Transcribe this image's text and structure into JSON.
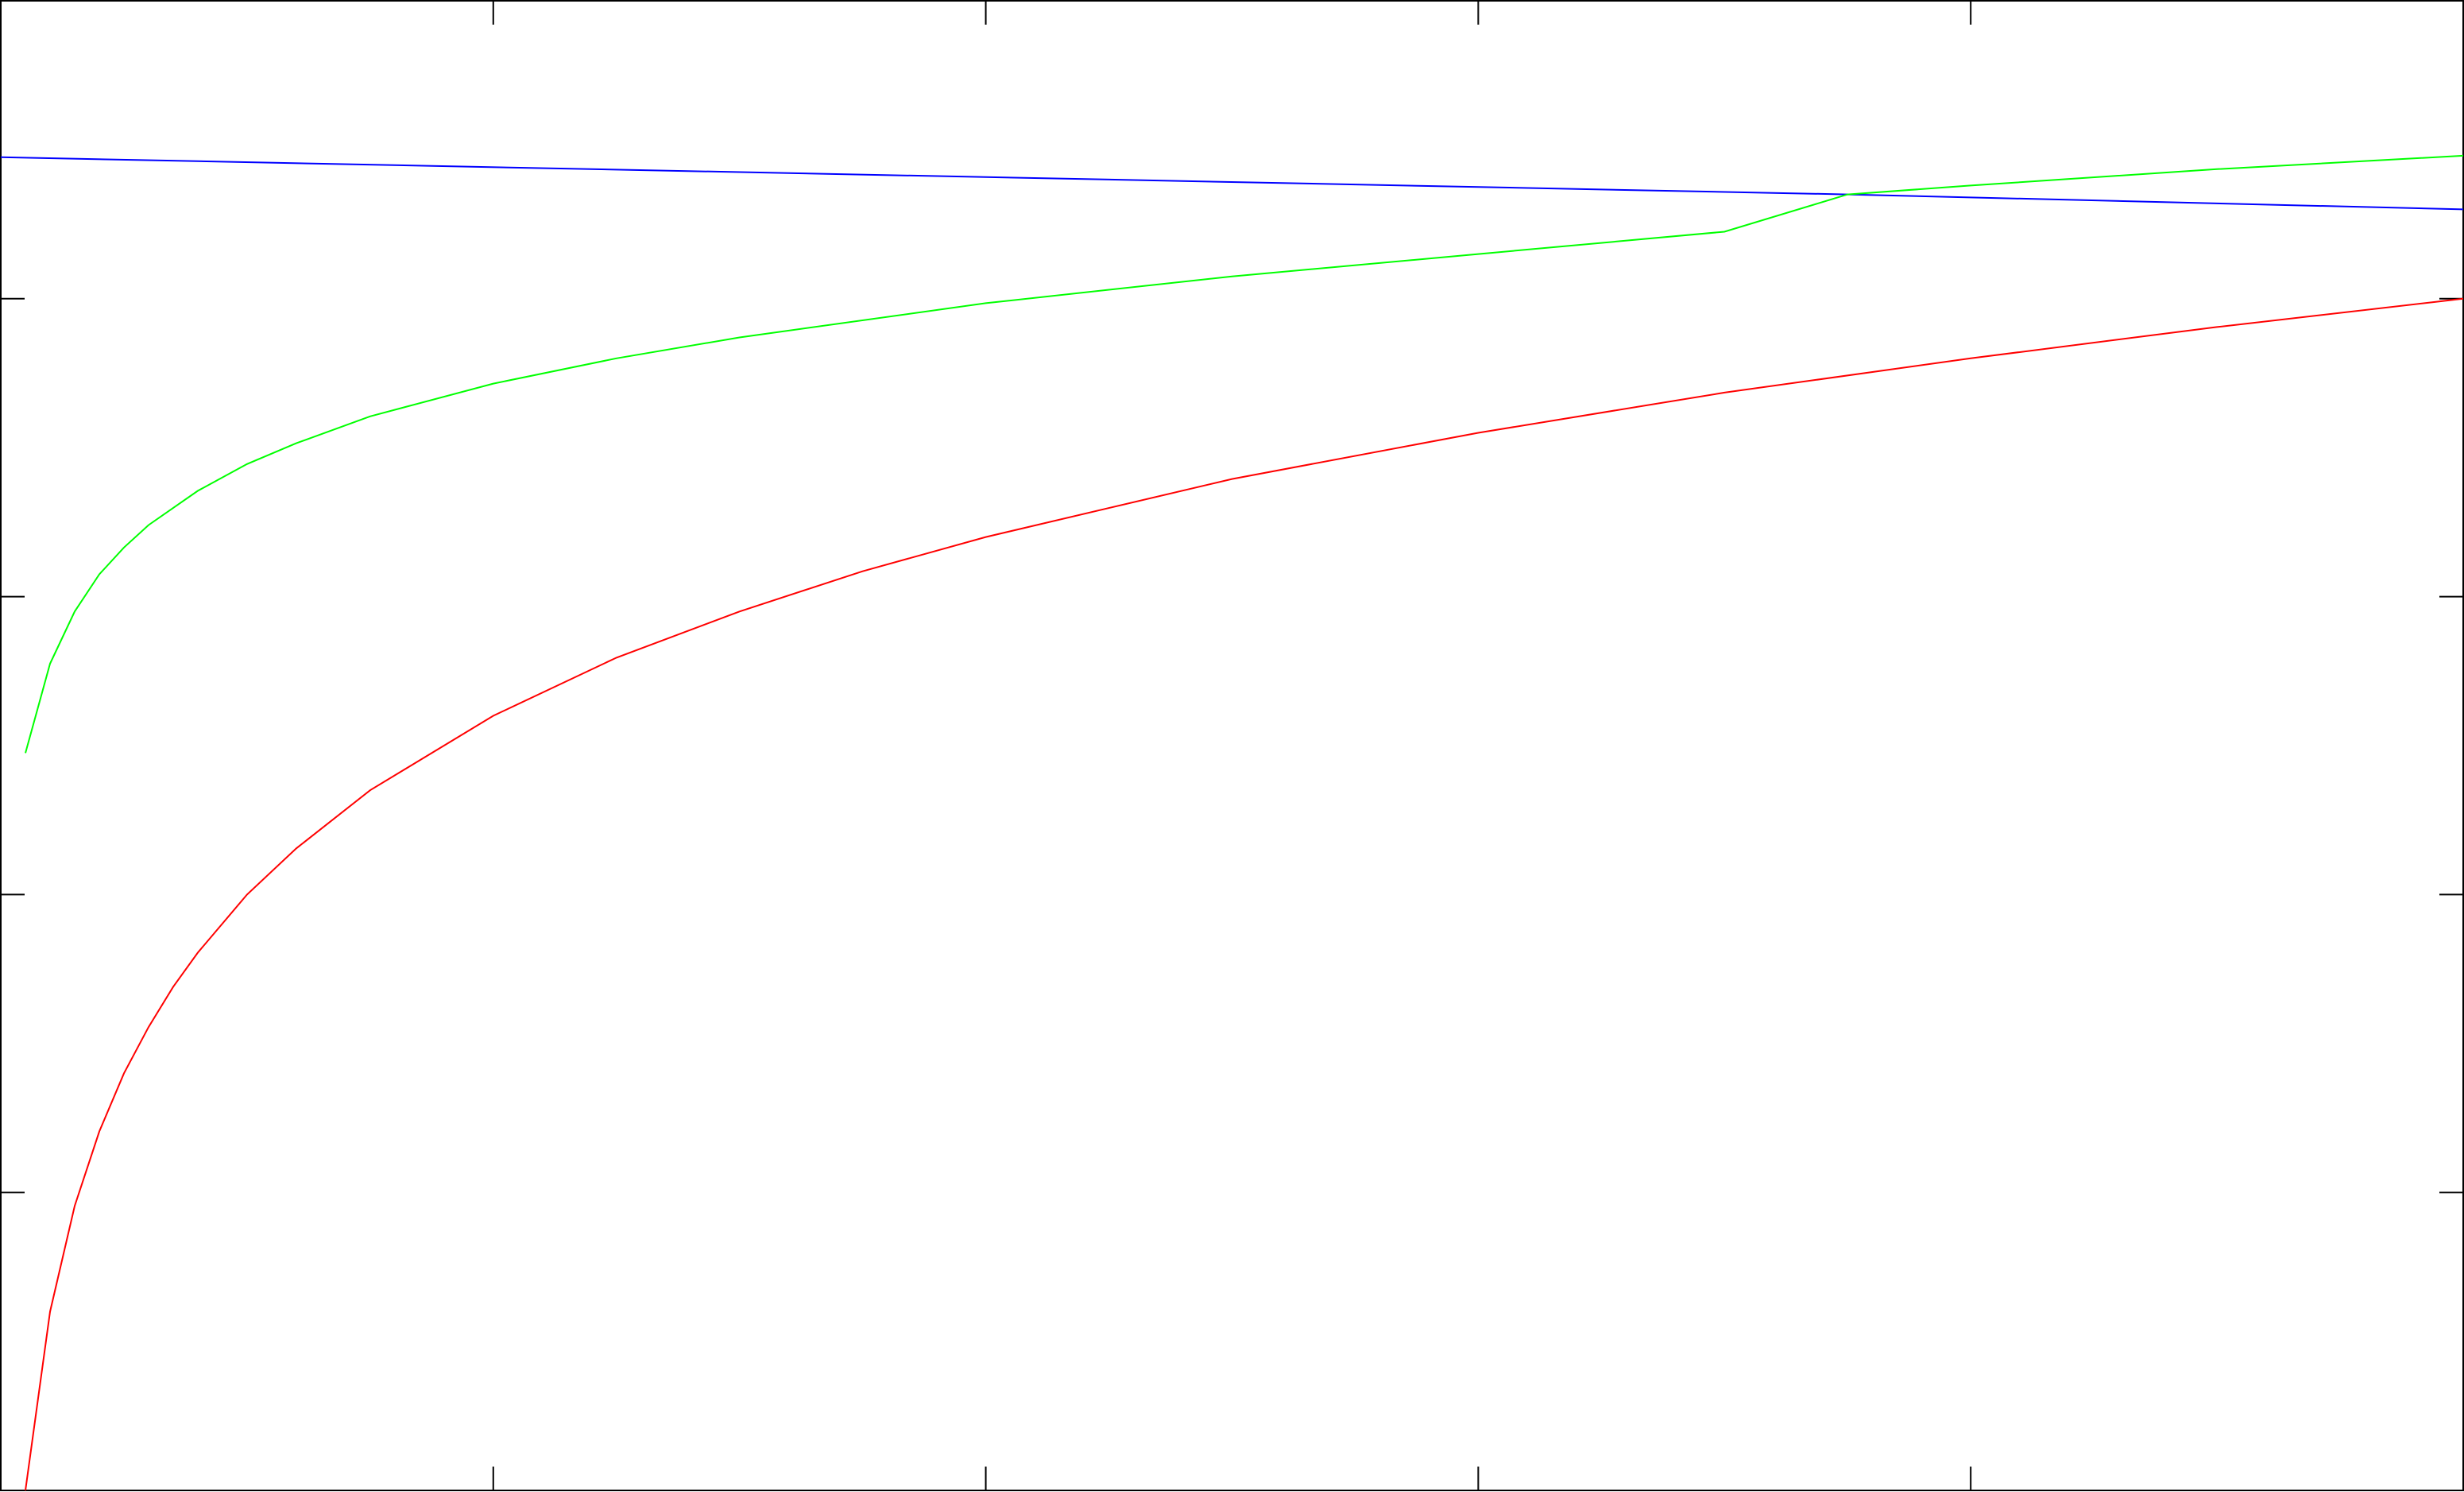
{
  "chart_data": {
    "type": "line",
    "title": "",
    "xlabel": "",
    "ylabel": "",
    "grid": false,
    "legend": "none",
    "xlim": [
      0,
      1
    ],
    "ylim": [
      0,
      1
    ],
    "x_ticks": [
      0,
      0.2,
      0.4,
      0.6,
      0.8,
      1
    ],
    "y_ticks": [
      0,
      0.2,
      0.4,
      0.6,
      0.8,
      1
    ],
    "tick_labels_visible": false,
    "series": [
      {
        "color": "#0000ff",
        "x": [
          0,
          0.75,
          1
        ],
        "y": [
          0.895,
          0.87,
          0.86
        ]
      },
      {
        "color": "#00ff00",
        "x": [
          0.01,
          0.02,
          0.03,
          0.04,
          0.05,
          0.06,
          0.08,
          0.1,
          0.12,
          0.15,
          0.2,
          0.25,
          0.3,
          0.4,
          0.5,
          0.6,
          0.7,
          0.75,
          0.8,
          0.9,
          1.0
        ],
        "y": [
          0.495,
          0.555,
          0.59,
          0.615,
          0.633,
          0.648,
          0.671,
          0.689,
          0.703,
          0.721,
          0.743,
          0.76,
          0.774,
          0.797,
          0.815,
          0.83,
          0.845,
          0.87,
          0.876,
          0.887,
          0.896
        ]
      },
      {
        "color": "#ff0000",
        "x": [
          0.01,
          0.02,
          0.03,
          0.04,
          0.05,
          0.06,
          0.07,
          0.08,
          0.1,
          0.12,
          0.15,
          0.2,
          0.25,
          0.3,
          0.35,
          0.4,
          0.5,
          0.6,
          0.7,
          0.8,
          0.9,
          1.0
        ],
        "y": [
          0.0,
          0.12,
          0.191,
          0.241,
          0.28,
          0.311,
          0.338,
          0.361,
          0.4,
          0.431,
          0.47,
          0.52,
          0.559,
          0.59,
          0.617,
          0.64,
          0.679,
          0.71,
          0.737,
          0.76,
          0.781,
          0.8
        ]
      }
    ]
  }
}
